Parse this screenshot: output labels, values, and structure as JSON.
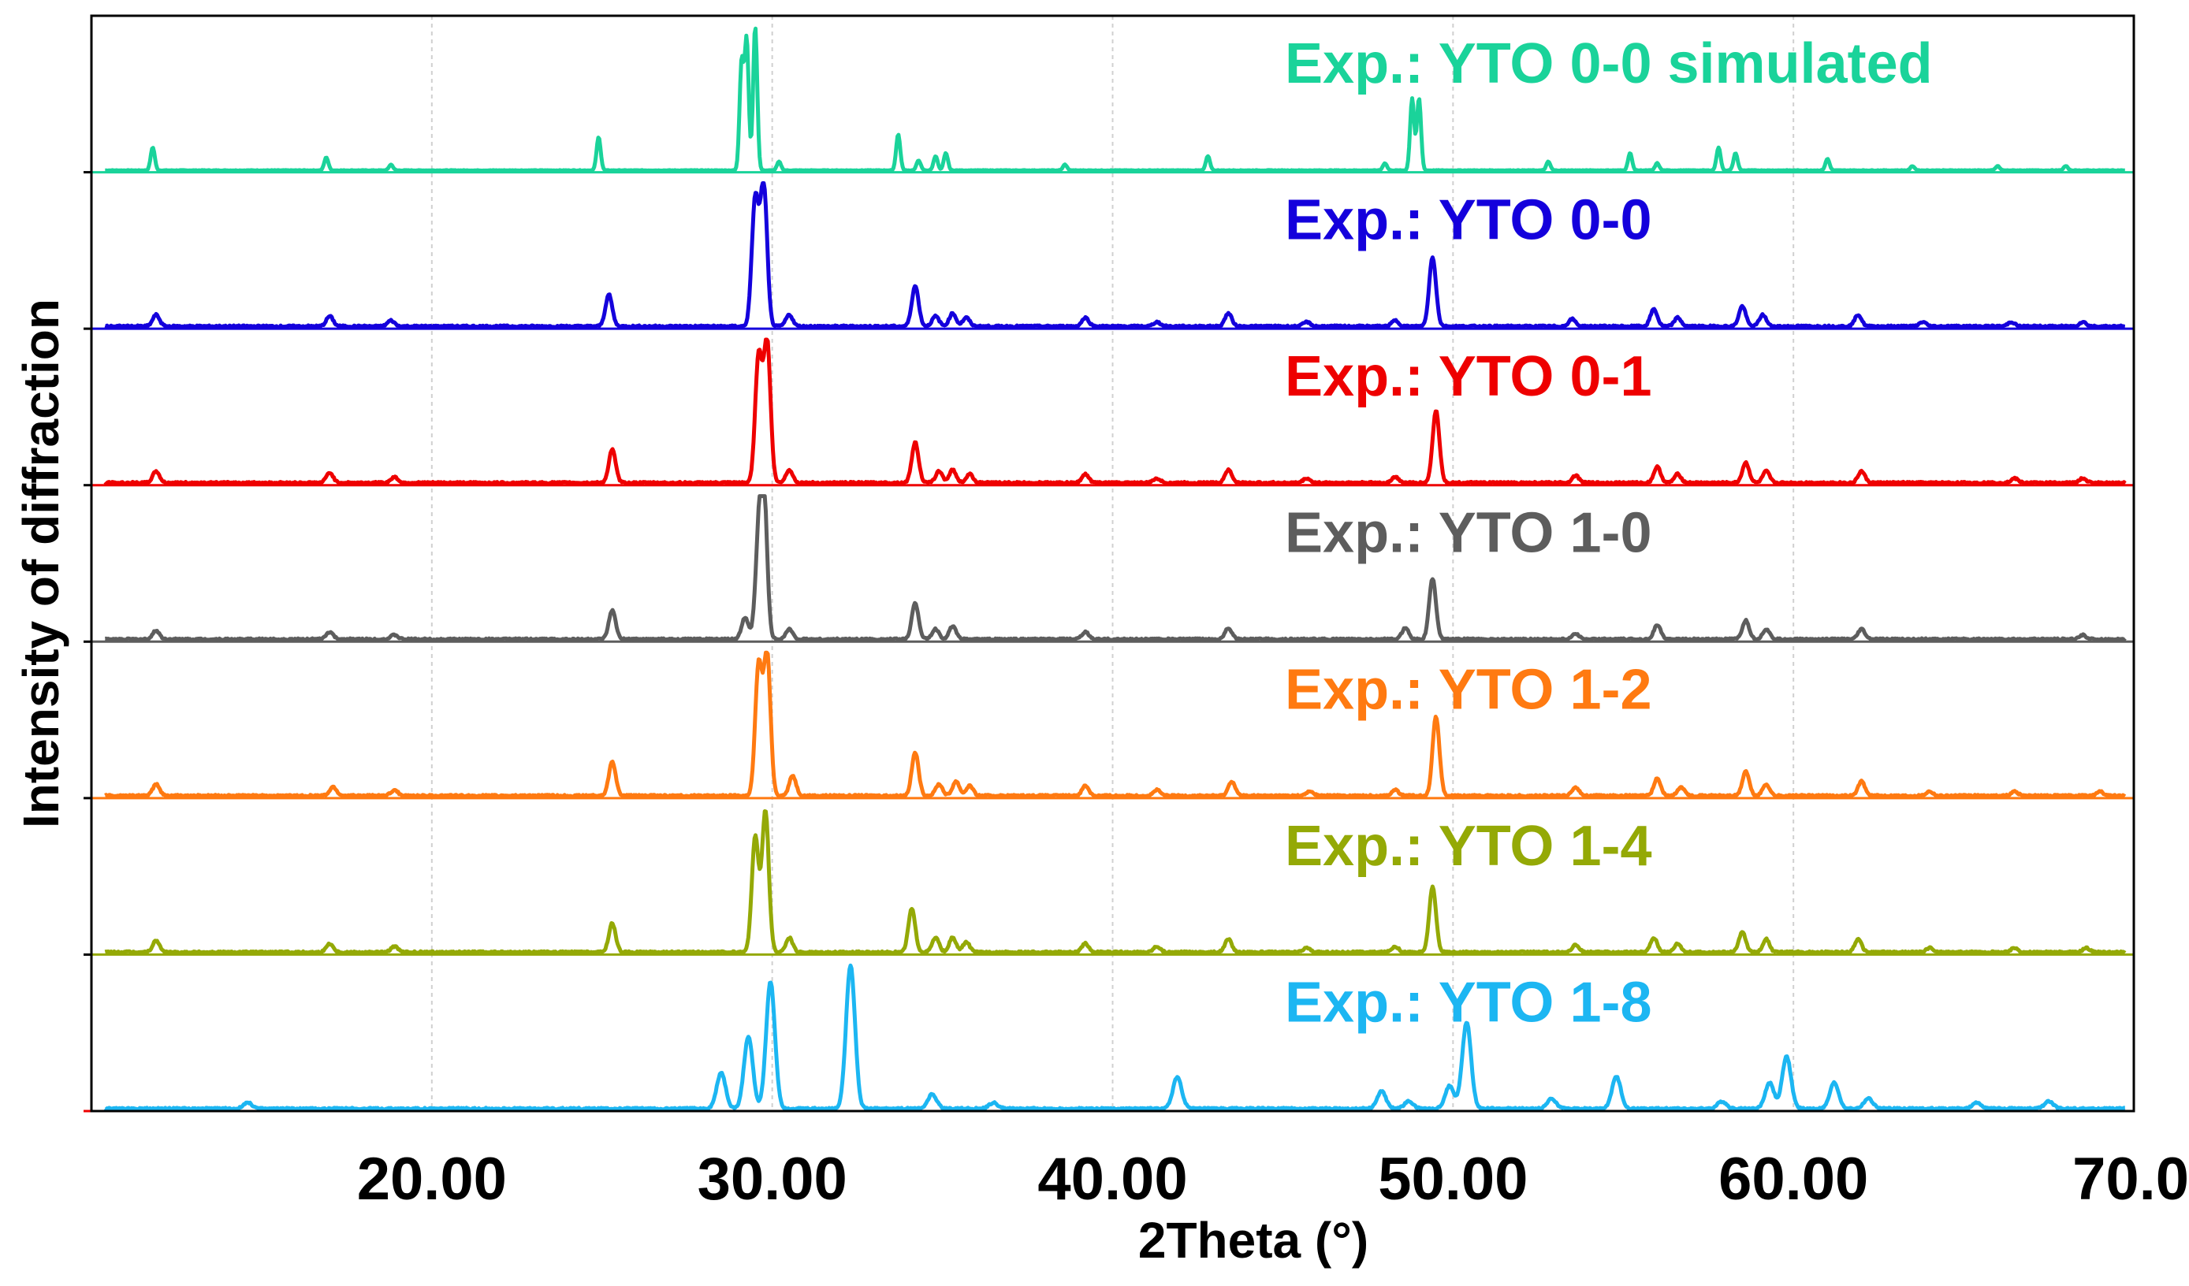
{
  "chart_data": {
    "type": "line",
    "xlabel": "2Theta (°)",
    "ylabel": "Intensity of diffraction",
    "xlim": [
      10,
      70
    ],
    "xticks": [
      20,
      30,
      40,
      50,
      60,
      70
    ],
    "xtick_labels": [
      "20.00",
      "30.00",
      "40.00",
      "50.00",
      "60.00",
      "70.0"
    ],
    "grid": true,
    "layout": "stacked",
    "series": [
      {
        "name": "Exp.: YTO 0-0 simulated",
        "color": "#1ad39a",
        "peaks": [
          [
            11.8,
            0.16
          ],
          [
            16.9,
            0.09
          ],
          [
            18.8,
            0.04
          ],
          [
            24.9,
            0.23
          ],
          [
            29.1,
            0.75
          ],
          [
            29.25,
            0.9
          ],
          [
            29.5,
            1.0
          ],
          [
            30.2,
            0.06
          ],
          [
            33.7,
            0.25
          ],
          [
            34.3,
            0.07
          ],
          [
            34.8,
            0.1
          ],
          [
            35.1,
            0.12
          ],
          [
            38.6,
            0.04
          ],
          [
            42.8,
            0.1
          ],
          [
            48.0,
            0.05
          ],
          [
            48.8,
            0.5
          ],
          [
            49.0,
            0.5
          ],
          [
            52.8,
            0.06
          ],
          [
            55.2,
            0.12
          ],
          [
            56.0,
            0.05
          ],
          [
            57.8,
            0.16
          ],
          [
            58.3,
            0.12
          ],
          [
            61.0,
            0.08
          ],
          [
            63.5,
            0.03
          ],
          [
            66.0,
            0.03
          ],
          [
            68.0,
            0.03
          ]
        ]
      },
      {
        "name": "Exp.: YTO 0-0",
        "color": "#1400dc",
        "peaks": [
          [
            11.9,
            0.08
          ],
          [
            17.0,
            0.07
          ],
          [
            18.8,
            0.04
          ],
          [
            25.2,
            0.22
          ],
          [
            29.5,
            0.88
          ],
          [
            29.75,
            0.98
          ],
          [
            30.5,
            0.08
          ],
          [
            34.2,
            0.28
          ],
          [
            34.8,
            0.07
          ],
          [
            35.3,
            0.09
          ],
          [
            35.7,
            0.06
          ],
          [
            39.2,
            0.06
          ],
          [
            41.3,
            0.03
          ],
          [
            43.4,
            0.09
          ],
          [
            45.7,
            0.03
          ],
          [
            48.3,
            0.04
          ],
          [
            49.4,
            0.48
          ],
          [
            53.5,
            0.05
          ],
          [
            55.9,
            0.12
          ],
          [
            56.6,
            0.06
          ],
          [
            58.5,
            0.14
          ],
          [
            59.1,
            0.08
          ],
          [
            61.9,
            0.08
          ],
          [
            63.8,
            0.03
          ],
          [
            66.4,
            0.03
          ],
          [
            68.5,
            0.03
          ]
        ]
      },
      {
        "name": "Exp.: YTO 0-1",
        "color": "#ee0000",
        "peaks": [
          [
            11.9,
            0.08
          ],
          [
            17.0,
            0.07
          ],
          [
            18.9,
            0.04
          ],
          [
            25.3,
            0.23
          ],
          [
            29.6,
            0.88
          ],
          [
            29.85,
            0.98
          ],
          [
            30.5,
            0.09
          ],
          [
            34.2,
            0.28
          ],
          [
            34.9,
            0.08
          ],
          [
            35.3,
            0.09
          ],
          [
            35.8,
            0.06
          ],
          [
            39.2,
            0.06
          ],
          [
            41.3,
            0.03
          ],
          [
            43.4,
            0.09
          ],
          [
            45.7,
            0.03
          ],
          [
            48.3,
            0.04
          ],
          [
            49.5,
            0.5
          ],
          [
            53.6,
            0.05
          ],
          [
            56.0,
            0.11
          ],
          [
            56.6,
            0.06
          ],
          [
            58.6,
            0.14
          ],
          [
            59.2,
            0.08
          ],
          [
            62.0,
            0.08
          ],
          [
            66.5,
            0.03
          ],
          [
            68.5,
            0.03
          ]
        ]
      },
      {
        "name": "Exp.: YTO 1-0",
        "color": "#5d5d5d",
        "peaks": [
          [
            11.9,
            0.06
          ],
          [
            17.0,
            0.05
          ],
          [
            18.9,
            0.03
          ],
          [
            25.3,
            0.2
          ],
          [
            29.2,
            0.15
          ],
          [
            29.6,
            0.6
          ],
          [
            29.75,
            0.98
          ],
          [
            30.5,
            0.07
          ],
          [
            34.2,
            0.25
          ],
          [
            34.8,
            0.07
          ],
          [
            35.3,
            0.09
          ],
          [
            39.2,
            0.05
          ],
          [
            43.4,
            0.08
          ],
          [
            48.6,
            0.08
          ],
          [
            49.4,
            0.42
          ],
          [
            53.6,
            0.04
          ],
          [
            56.0,
            0.1
          ],
          [
            58.6,
            0.13
          ],
          [
            59.2,
            0.07
          ],
          [
            62.0,
            0.07
          ],
          [
            68.5,
            0.03
          ]
        ]
      },
      {
        "name": "Exp.: YTO 1-2",
        "color": "#ff7a11",
        "peaks": [
          [
            11.9,
            0.08
          ],
          [
            17.1,
            0.06
          ],
          [
            18.9,
            0.04
          ],
          [
            25.3,
            0.24
          ],
          [
            29.6,
            0.9
          ],
          [
            29.85,
            0.98
          ],
          [
            30.6,
            0.14
          ],
          [
            34.2,
            0.3
          ],
          [
            34.9,
            0.08
          ],
          [
            35.4,
            0.1
          ],
          [
            35.8,
            0.07
          ],
          [
            39.2,
            0.07
          ],
          [
            41.3,
            0.04
          ],
          [
            43.5,
            0.1
          ],
          [
            45.8,
            0.03
          ],
          [
            48.3,
            0.04
          ],
          [
            49.5,
            0.55
          ],
          [
            53.6,
            0.06
          ],
          [
            56.0,
            0.12
          ],
          [
            56.7,
            0.06
          ],
          [
            58.6,
            0.17
          ],
          [
            59.2,
            0.08
          ],
          [
            62.0,
            0.1
          ],
          [
            64.0,
            0.03
          ],
          [
            66.5,
            0.03
          ],
          [
            69.0,
            0.03
          ]
        ]
      },
      {
        "name": "Exp.: YTO 1-4",
        "color": "#94a906",
        "peaks": [
          [
            11.9,
            0.08
          ],
          [
            17.0,
            0.06
          ],
          [
            18.9,
            0.04
          ],
          [
            25.3,
            0.2
          ],
          [
            29.5,
            0.8
          ],
          [
            29.8,
            0.98
          ],
          [
            30.5,
            0.1
          ],
          [
            34.1,
            0.3
          ],
          [
            34.8,
            0.1
          ],
          [
            35.3,
            0.1
          ],
          [
            35.7,
            0.07
          ],
          [
            39.2,
            0.06
          ],
          [
            41.3,
            0.04
          ],
          [
            43.4,
            0.09
          ],
          [
            45.7,
            0.03
          ],
          [
            48.3,
            0.04
          ],
          [
            49.4,
            0.45
          ],
          [
            53.6,
            0.05
          ],
          [
            55.9,
            0.1
          ],
          [
            56.6,
            0.06
          ],
          [
            58.5,
            0.14
          ],
          [
            59.2,
            0.09
          ],
          [
            61.9,
            0.09
          ],
          [
            64.0,
            0.03
          ],
          [
            66.5,
            0.03
          ],
          [
            68.6,
            0.03
          ]
        ]
      },
      {
        "name": "Exp.: YTO 1-8",
        "color": "#1cb6f2",
        "peaks": [
          [
            14.6,
            0.04
          ],
          [
            28.5,
            0.25
          ],
          [
            29.3,
            0.5
          ],
          [
            29.95,
            0.88
          ],
          [
            32.3,
            1.0
          ],
          [
            34.7,
            0.1
          ],
          [
            36.5,
            0.04
          ],
          [
            41.9,
            0.22
          ],
          [
            47.9,
            0.12
          ],
          [
            48.7,
            0.05
          ],
          [
            49.9,
            0.16
          ],
          [
            50.4,
            0.6
          ],
          [
            52.9,
            0.07
          ],
          [
            54.8,
            0.22
          ],
          [
            57.9,
            0.05
          ],
          [
            59.3,
            0.18
          ],
          [
            59.8,
            0.36
          ],
          [
            61.2,
            0.18
          ],
          [
            62.2,
            0.07
          ],
          [
            65.4,
            0.04
          ],
          [
            67.5,
            0.05
          ]
        ]
      }
    ]
  }
}
